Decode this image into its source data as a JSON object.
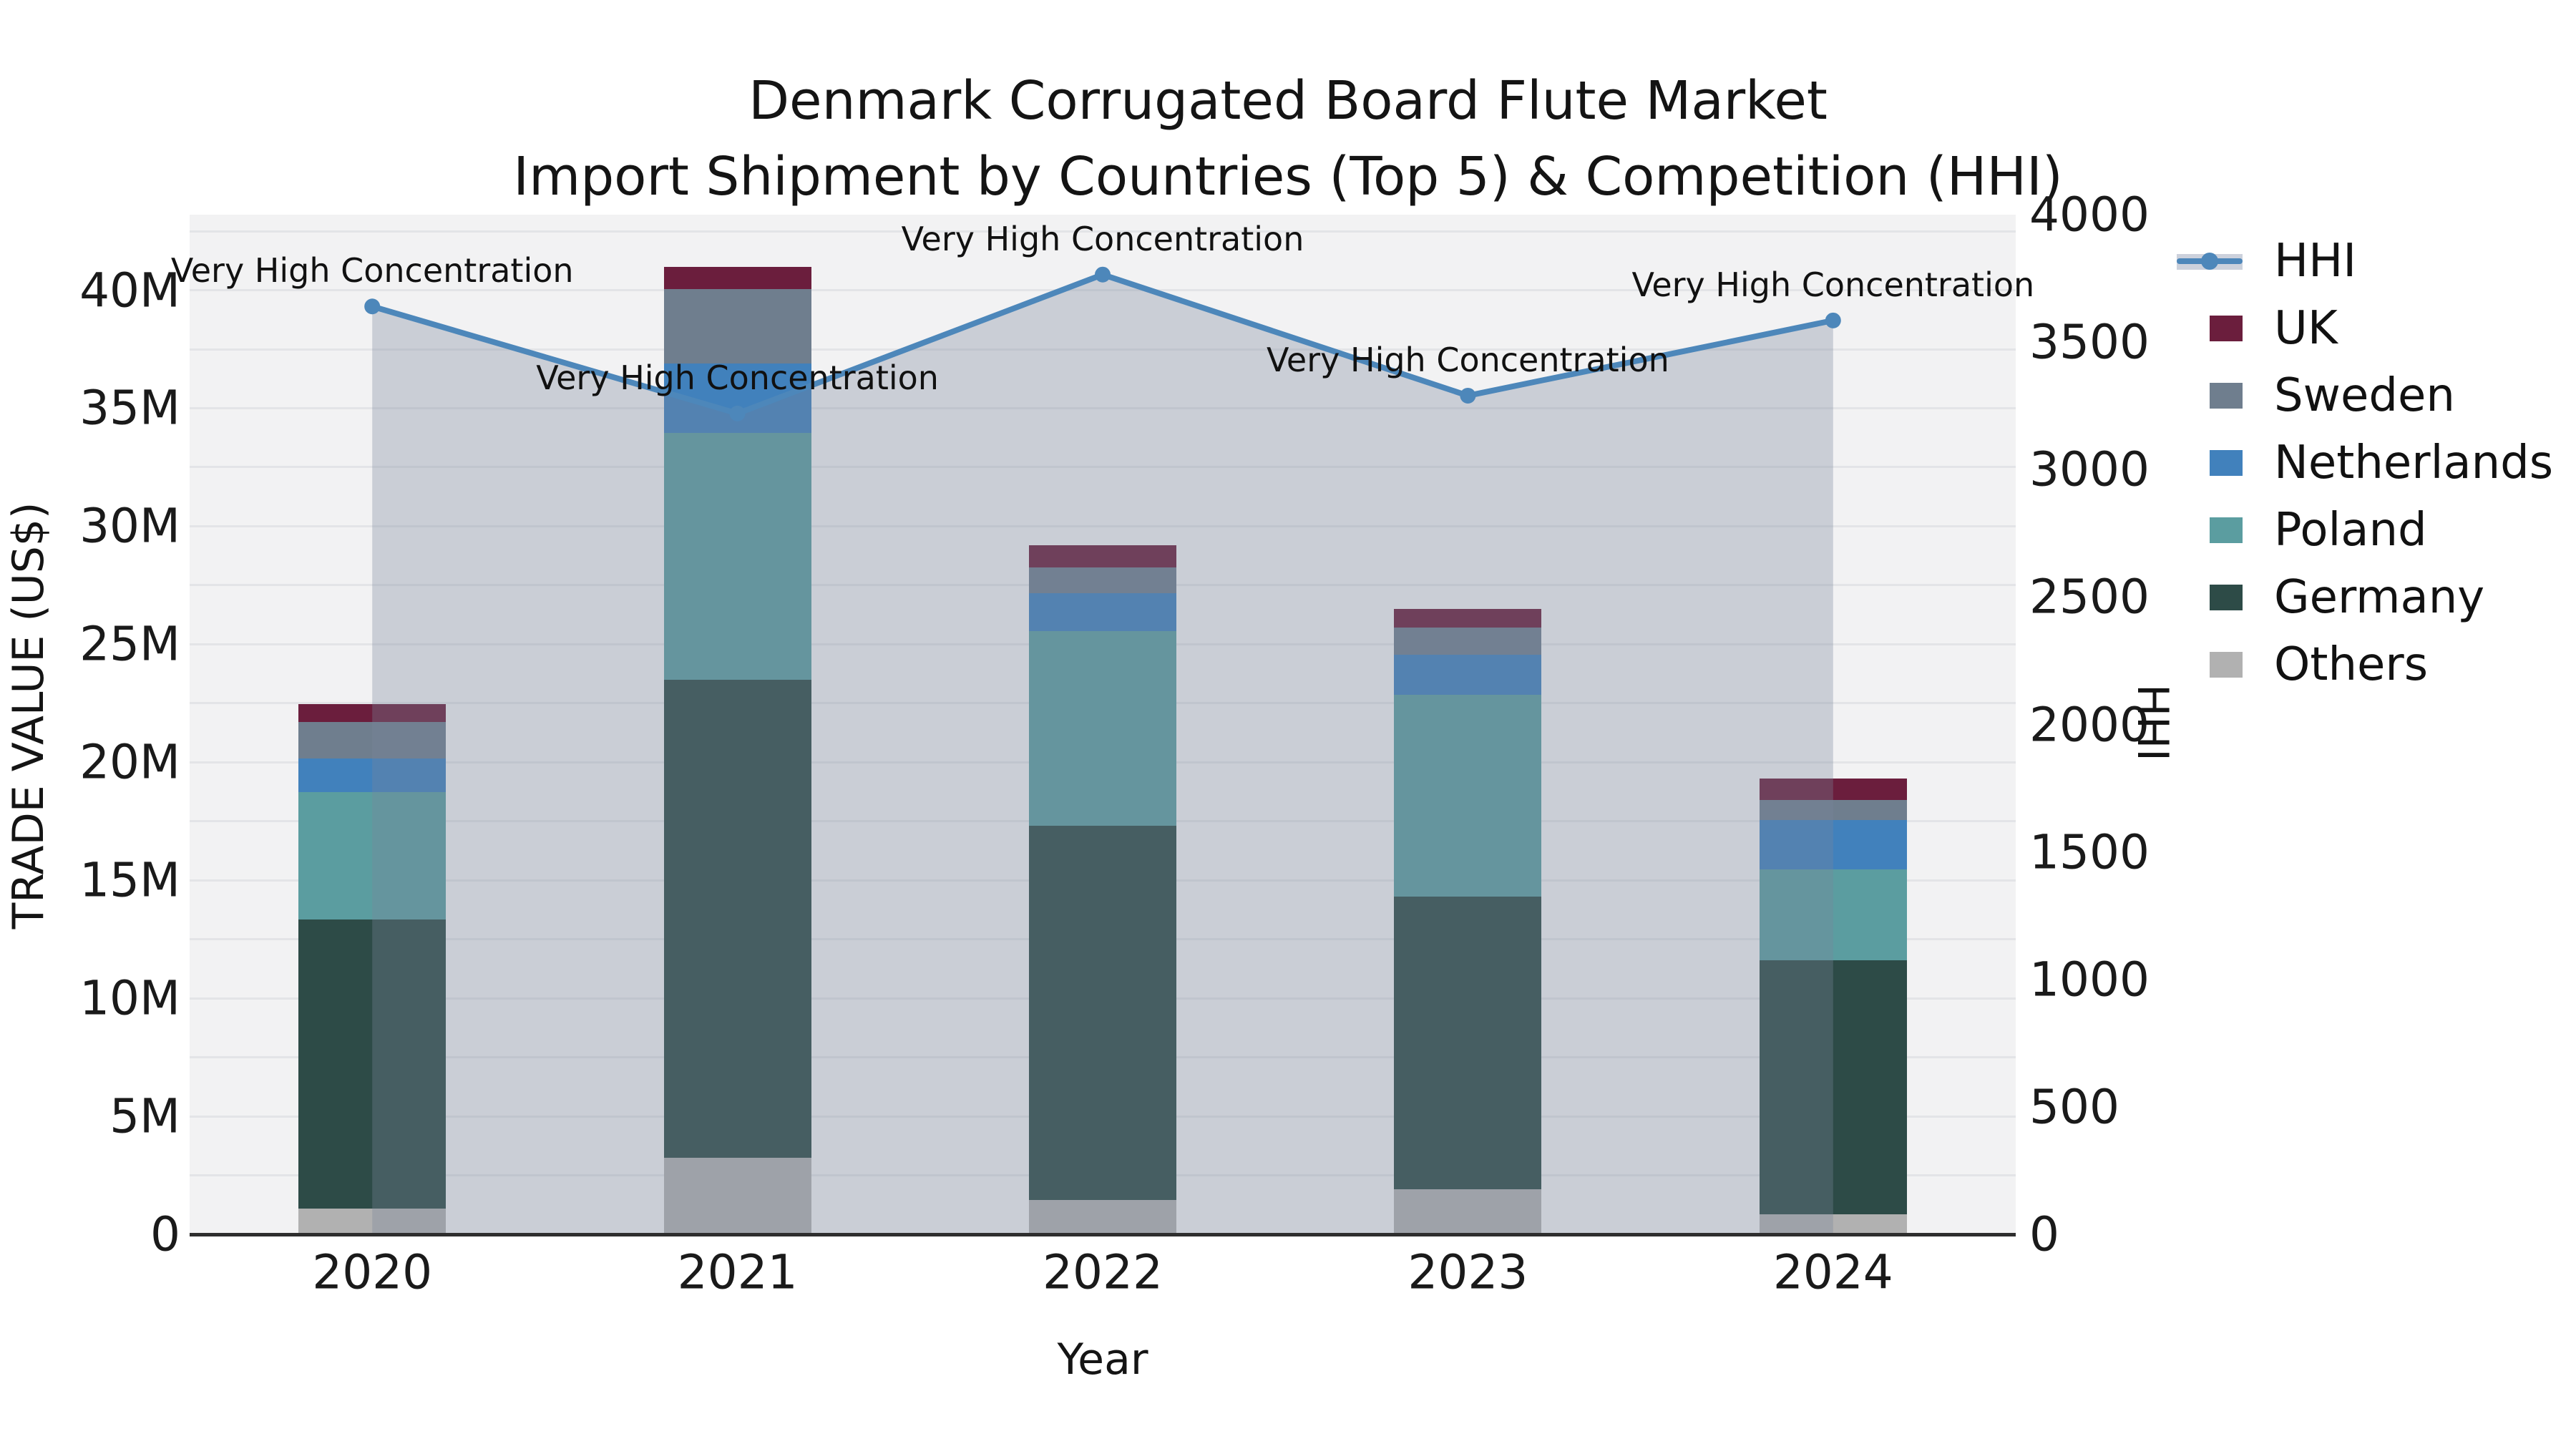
{
  "title": {
    "line1": "Denmark Corrugated Board Flute Market",
    "line2": "Import Shipment by Countries (Top 5) & Competition (HHI)"
  },
  "axes": {
    "x_title": "Year",
    "y_left_title": "TRADE VALUE (US$)",
    "y_right_title": "HHI",
    "y_left_tick_labels": [
      "0",
      "5M",
      "10M",
      "15M",
      "20M",
      "25M",
      "30M",
      "35M",
      "40M"
    ],
    "y_right_tick_labels": [
      "0",
      "500",
      "1000",
      "1500",
      "2000",
      "2500",
      "3000",
      "3500",
      "4000"
    ]
  },
  "legend": [
    {
      "label": "HHI",
      "type": "line",
      "color": "#4d87ba"
    },
    {
      "label": "UK",
      "type": "box",
      "color": "#6b1e3d"
    },
    {
      "label": "Sweden",
      "type": "box",
      "color": "#6f7e8e"
    },
    {
      "label": "Netherlands",
      "type": "box",
      "color": "#4181bc"
    },
    {
      "label": "Poland",
      "type": "box",
      "color": "#5b9da0"
    },
    {
      "label": "Germany",
      "type": "box",
      "color": "#2d4b47"
    },
    {
      "label": "Others",
      "type": "box",
      "color": "#b1b1b1"
    }
  ],
  "chart_data": {
    "type": "bar",
    "subtype": "stacked-bars-with-line-overlay",
    "categories": [
      "2020",
      "2021",
      "2022",
      "2023",
      "2024"
    ],
    "value_unit": "million US$",
    "series": [
      {
        "name": "Others",
        "color": "#b1b1b1",
        "values_musd": [
          1.1,
          3.25,
          1.45,
          1.9,
          0.85
        ]
      },
      {
        "name": "Germany",
        "color": "#2d4b47",
        "values_musd": [
          12.25,
          20.25,
          15.85,
          12.4,
          10.75
        ]
      },
      {
        "name": "Poland",
        "color": "#5b9da0",
        "values_musd": [
          5.4,
          10.45,
          8.25,
          8.55,
          3.85
        ]
      },
      {
        "name": "Netherlands",
        "color": "#4181bc",
        "values_musd": [
          1.4,
          2.95,
          1.6,
          1.7,
          2.1
        ]
      },
      {
        "name": "Sweden",
        "color": "#6f7e8e",
        "values_musd": [
          1.55,
          3.15,
          1.1,
          1.15,
          0.85
        ]
      },
      {
        "name": "UK",
        "color": "#6b1e3d",
        "values_musd": [
          0.75,
          0.95,
          0.95,
          0.8,
          0.9
        ]
      }
    ],
    "stack_totals_musd": [
      22.45,
      41.0,
      29.2,
      26.5,
      19.3
    ],
    "line_series": {
      "name": "HHI",
      "axis": "right",
      "color": "#4d87ba",
      "area_fill": "rgba(122,134,155,0.33)",
      "values": [
        3640,
        3220,
        3765,
        3290,
        3585
      ]
    },
    "annotations": [
      "Very High Concentration",
      "Very High Concentration",
      "Very High Concentration",
      "Very High Concentration",
      "Very High Concentration"
    ],
    "xlabel": "Year",
    "ylabel_left": "TRADE VALUE (US$)",
    "ylabel_right": "HHI",
    "ylim_left_musd": [
      0,
      43.2
    ],
    "ylim_right": [
      0,
      4000
    ],
    "grid_step_musd": 2.5,
    "grid": "on",
    "legend_position": "right-outside"
  }
}
